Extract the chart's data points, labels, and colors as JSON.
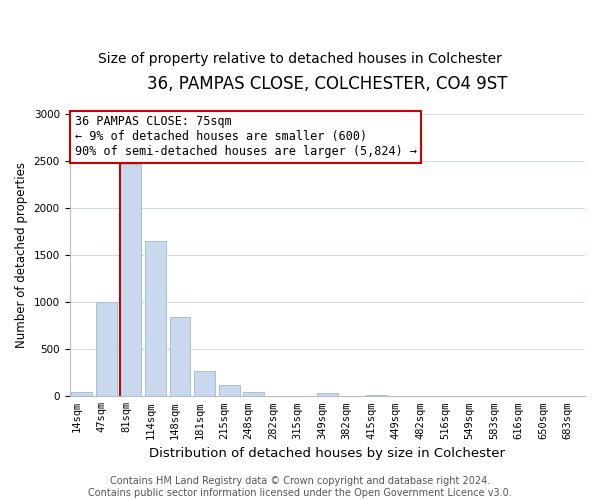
{
  "title": "36, PAMPAS CLOSE, COLCHESTER, CO4 9ST",
  "subtitle": "Size of property relative to detached houses in Colchester",
  "xlabel": "Distribution of detached houses by size in Colchester",
  "ylabel": "Number of detached properties",
  "bar_labels": [
    "14sqm",
    "47sqm",
    "81sqm",
    "114sqm",
    "148sqm",
    "181sqm",
    "215sqm",
    "248sqm",
    "282sqm",
    "315sqm",
    "349sqm",
    "382sqm",
    "415sqm",
    "449sqm",
    "482sqm",
    "516sqm",
    "549sqm",
    "583sqm",
    "616sqm",
    "650sqm",
    "683sqm"
  ],
  "bar_values": [
    50,
    1000,
    2470,
    1650,
    840,
    270,
    120,
    50,
    0,
    0,
    40,
    0,
    15,
    0,
    0,
    0,
    0,
    0,
    0,
    0,
    0
  ],
  "bar_color": "#c8d9ed",
  "bar_edge_color": "#a8c0d8",
  "vline_bar_index": 2,
  "vline_color": "#cc0000",
  "annotation_text": "36 PAMPAS CLOSE: 75sqm\n← 9% of detached houses are smaller (600)\n90% of semi-detached houses are larger (5,824) →",
  "annotation_box_color": "#ffffff",
  "annotation_box_edge_color": "#cc0000",
  "ylim": [
    0,
    3000
  ],
  "yticks": [
    0,
    500,
    1000,
    1500,
    2000,
    2500,
    3000
  ],
  "footer_text": "Contains HM Land Registry data © Crown copyright and database right 2024.\nContains public sector information licensed under the Open Government Licence v3.0.",
  "title_fontsize": 12,
  "subtitle_fontsize": 10,
  "xlabel_fontsize": 9.5,
  "ylabel_fontsize": 8.5,
  "tick_fontsize": 7.5,
  "annotation_fontsize": 8.5,
  "footer_fontsize": 7
}
